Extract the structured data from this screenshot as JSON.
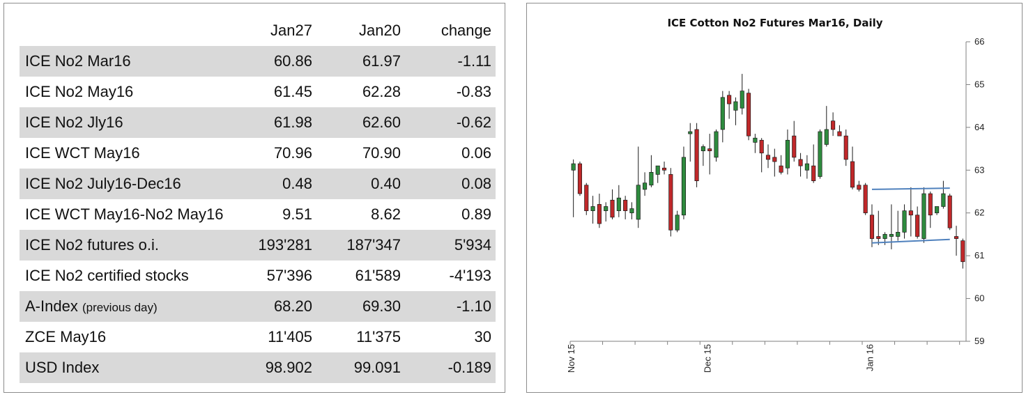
{
  "table": {
    "headers": [
      "",
      "Jan27",
      "Jan20",
      "change"
    ],
    "rows": [
      {
        "label": "ICE No2 Mar16",
        "note": "",
        "jan27": "60.86",
        "jan20": "61.97",
        "change": "-1.11"
      },
      {
        "label": "ICE No2 May16",
        "note": "",
        "jan27": "61.45",
        "jan20": "62.28",
        "change": "-0.83"
      },
      {
        "label": "ICE No2 Jly16",
        "note": "",
        "jan27": "61.98",
        "jan20": "62.60",
        "change": "-0.62"
      },
      {
        "label": "ICE WCT May16",
        "note": "",
        "jan27": "70.96",
        "jan20": "70.90",
        "change": "0.06"
      },
      {
        "label": "ICE No2 July16-Dec16",
        "note": "",
        "jan27": "0.48",
        "jan20": "0.40",
        "change": "0.08"
      },
      {
        "label": "ICE WCT May16-No2 May16",
        "note": "",
        "jan27": "9.51",
        "jan20": "8.62",
        "change": "0.89"
      },
      {
        "label": "ICE No2 futures o.i.",
        "note": "",
        "jan27": "193'281",
        "jan20": "187'347",
        "change": "5'934"
      },
      {
        "label": "ICE No2 certified stocks",
        "note": "",
        "jan27": "57'396",
        "jan20": "61'589",
        "change": "-4'193"
      },
      {
        "label": "A-Index",
        "note": "(previous day)",
        "jan27": "68.20",
        "jan20": "69.30",
        "change": "-1.10"
      },
      {
        "label": "ZCE May16",
        "note": "",
        "jan27": "11'405",
        "jan20": "11'375",
        "change": "30"
      },
      {
        "label": "USD Index",
        "note": "",
        "jan27": "98.902",
        "jan20": "99.091",
        "change": "-0.189"
      }
    ]
  },
  "chart_data": {
    "type": "candlestick",
    "title": "ICE Cotton No2 Futures Mar16, Daily",
    "ylim": [
      59,
      66
    ],
    "yticks": [
      "59",
      "60",
      "61",
      "62",
      "63",
      "64",
      "65",
      "66"
    ],
    "y_axis_side": "right",
    "x_tick_labels": [
      {
        "label": "Nov 15",
        "index": 0
      },
      {
        "label": "Dec 15",
        "index": 21
      },
      {
        "label": "Jan 16",
        "index": 46
      }
    ],
    "colors": {
      "up": "#2e8b3e",
      "down": "#c0282a",
      "trendline": "#4f81bd",
      "axis": "#7f7f7f"
    },
    "candles": [
      {
        "o": 63.0,
        "h": 63.25,
        "l": 61.9,
        "c": 63.15
      },
      {
        "o": 63.15,
        "h": 63.2,
        "l": 62.4,
        "c": 62.45
      },
      {
        "o": 62.65,
        "h": 62.7,
        "l": 61.95,
        "c": 62.05
      },
      {
        "o": 62.05,
        "h": 62.4,
        "l": 61.75,
        "c": 62.15
      },
      {
        "o": 62.2,
        "h": 62.45,
        "l": 61.65,
        "c": 61.75
      },
      {
        "o": 62.05,
        "h": 62.25,
        "l": 61.8,
        "c": 62.15
      },
      {
        "o": 62.3,
        "h": 62.55,
        "l": 61.85,
        "c": 61.9
      },
      {
        "o": 62.05,
        "h": 62.65,
        "l": 61.9,
        "c": 62.35
      },
      {
        "o": 62.3,
        "h": 62.4,
        "l": 61.85,
        "c": 62.05
      },
      {
        "o": 62.0,
        "h": 62.25,
        "l": 61.85,
        "c": 62.1
      },
      {
        "o": 61.85,
        "h": 63.55,
        "l": 61.65,
        "c": 62.65
      },
      {
        "o": 62.55,
        "h": 62.95,
        "l": 62.4,
        "c": 62.7
      },
      {
        "o": 62.65,
        "h": 63.35,
        "l": 62.6,
        "c": 62.95
      },
      {
        "o": 62.9,
        "h": 63.1,
        "l": 62.7,
        "c": 63.1
      },
      {
        "o": 63.05,
        "h": 63.2,
        "l": 62.9,
        "c": 63.0
      },
      {
        "o": 62.9,
        "h": 63.05,
        "l": 61.45,
        "c": 61.6
      },
      {
        "o": 61.6,
        "h": 62.05,
        "l": 61.55,
        "c": 61.95
      },
      {
        "o": 61.95,
        "h": 63.55,
        "l": 61.85,
        "c": 63.3
      },
      {
        "o": 63.85,
        "h": 64.1,
        "l": 63.2,
        "c": 63.9
      },
      {
        "o": 63.95,
        "h": 64.1,
        "l": 62.6,
        "c": 62.75
      },
      {
        "o": 63.45,
        "h": 63.6,
        "l": 63.1,
        "c": 63.55
      },
      {
        "o": 63.5,
        "h": 63.85,
        "l": 62.9,
        "c": 63.45
      },
      {
        "o": 63.3,
        "h": 63.95,
        "l": 63.2,
        "c": 63.9
      },
      {
        "o": 63.95,
        "h": 64.85,
        "l": 63.65,
        "c": 64.7
      },
      {
        "o": 64.75,
        "h": 64.85,
        "l": 64.2,
        "c": 64.55
      },
      {
        "o": 64.4,
        "h": 64.7,
        "l": 64.05,
        "c": 64.6
      },
      {
        "o": 64.45,
        "h": 65.25,
        "l": 64.3,
        "c": 64.85
      },
      {
        "o": 64.8,
        "h": 64.9,
        "l": 63.7,
        "c": 63.8
      },
      {
        "o": 63.65,
        "h": 63.85,
        "l": 63.4,
        "c": 63.75
      },
      {
        "o": 63.7,
        "h": 63.75,
        "l": 62.95,
        "c": 63.4
      },
      {
        "o": 63.35,
        "h": 63.6,
        "l": 63.05,
        "c": 63.25
      },
      {
        "o": 63.3,
        "h": 63.5,
        "l": 62.85,
        "c": 63.2
      },
      {
        "o": 63.1,
        "h": 63.35,
        "l": 62.9,
        "c": 62.95
      },
      {
        "o": 63.05,
        "h": 63.95,
        "l": 62.9,
        "c": 63.7
      },
      {
        "o": 63.8,
        "h": 64.15,
        "l": 63.2,
        "c": 63.3
      },
      {
        "o": 63.25,
        "h": 63.4,
        "l": 62.85,
        "c": 63.1
      },
      {
        "o": 63.0,
        "h": 63.35,
        "l": 62.8,
        "c": 63.15
      },
      {
        "o": 63.1,
        "h": 63.6,
        "l": 62.7,
        "c": 62.75
      },
      {
        "o": 62.85,
        "h": 63.95,
        "l": 62.8,
        "c": 63.9
      },
      {
        "o": 63.6,
        "h": 64.5,
        "l": 63.55,
        "c": 63.95
      },
      {
        "o": 64.15,
        "h": 64.35,
        "l": 63.8,
        "c": 63.95
      },
      {
        "o": 63.9,
        "h": 64.05,
        "l": 63.8,
        "c": 63.8
      },
      {
        "o": 63.8,
        "h": 63.95,
        "l": 63.1,
        "c": 63.25
      },
      {
        "o": 63.2,
        "h": 63.55,
        "l": 62.55,
        "c": 62.6
      },
      {
        "o": 62.65,
        "h": 62.75,
        "l": 62.5,
        "c": 62.55
      },
      {
        "o": 62.65,
        "h": 62.7,
        "l": 61.95,
        "c": 62.0
      },
      {
        "o": 61.95,
        "h": 62.2,
        "l": 61.2,
        "c": 61.4
      },
      {
        "o": 61.45,
        "h": 62.05,
        "l": 61.25,
        "c": 61.4
      },
      {
        "o": 61.4,
        "h": 61.55,
        "l": 61.25,
        "c": 61.5
      },
      {
        "o": 61.45,
        "h": 62.2,
        "l": 61.15,
        "c": 61.5
      },
      {
        "o": 61.45,
        "h": 62.05,
        "l": 61.35,
        "c": 61.55
      },
      {
        "o": 61.55,
        "h": 62.2,
        "l": 61.4,
        "c": 62.05
      },
      {
        "o": 62.05,
        "h": 62.6,
        "l": 61.45,
        "c": 61.95
      },
      {
        "o": 61.95,
        "h": 62.15,
        "l": 61.4,
        "c": 61.45
      },
      {
        "o": 61.4,
        "h": 62.6,
        "l": 61.3,
        "c": 62.45
      },
      {
        "o": 62.45,
        "h": 62.5,
        "l": 61.65,
        "c": 61.95
      },
      {
        "o": 62.0,
        "h": 62.15,
        "l": 61.95,
        "c": 62.15
      },
      {
        "o": 62.15,
        "h": 62.75,
        "l": 62.1,
        "c": 62.45
      },
      {
        "o": 62.4,
        "h": 62.45,
        "l": 61.6,
        "c": 61.65
      },
      {
        "o": 61.45,
        "h": 61.7,
        "l": 61.0,
        "c": 61.4
      },
      {
        "o": 61.35,
        "h": 61.4,
        "l": 60.7,
        "c": 60.86
      }
    ],
    "trendlines": [
      {
        "x1": 46,
        "y1": 62.55,
        "x2": 58,
        "y2": 62.58
      },
      {
        "x1": 46,
        "y1": 61.3,
        "x2": 58,
        "y2": 61.38
      }
    ]
  }
}
